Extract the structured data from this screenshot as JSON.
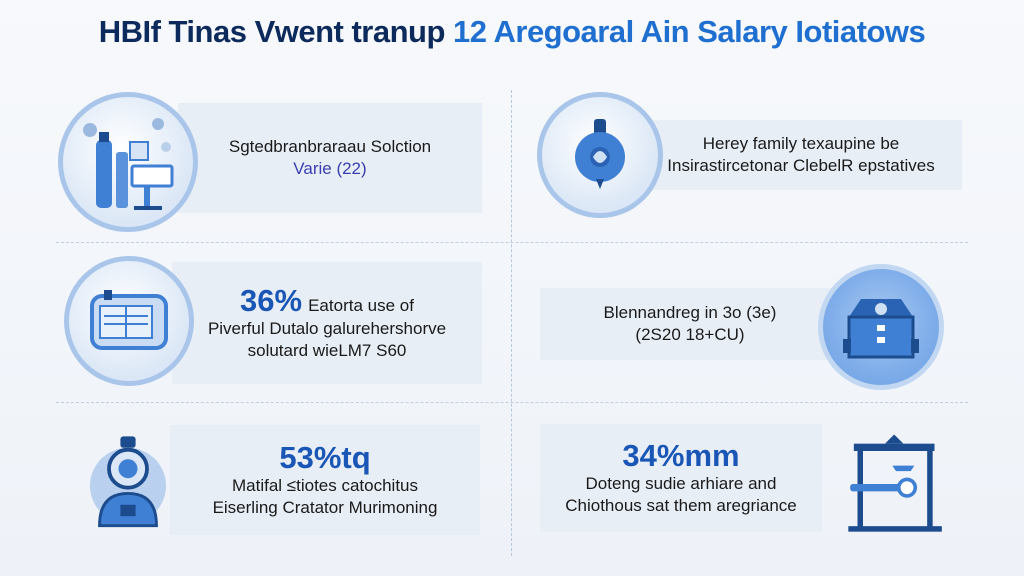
{
  "title": {
    "part1": "HBIf Tinas Vwent tranup",
    "part2": "12 Aregoaral Ain Salary Iotiatows"
  },
  "cards": [
    {
      "id": "c1",
      "stat": "",
      "lines": [
        "Sgtedbranbraraau Solction",
        "Varie (22)"
      ],
      "icon": "lab-equipment-icon"
    },
    {
      "id": "c2",
      "stat": "",
      "lines": [
        "Herey family texaupine be",
        "Insirastircetonar ClebelR epstatives"
      ],
      "icon": "medal-icon"
    },
    {
      "id": "c3",
      "stat": "36%",
      "stat_suffix": "Eatorta use of",
      "lines": [
        "Piverful Dutalo galurehershorve",
        "solutard wieLM7 S60"
      ],
      "icon": "document-folder-icon"
    },
    {
      "id": "c4",
      "stat": "",
      "lines": [
        "Blennandreg in 3o (3e)",
        "(2S20 18+CU)"
      ],
      "icon": "building-icon"
    },
    {
      "id": "c5",
      "stat": "53%tq",
      "lines": [
        "Matifal ≤tiotes catochitus",
        "Eiserling Cratator Murimoning"
      ],
      "icon": "robot-figure-icon"
    },
    {
      "id": "c6",
      "stat": "34%mm",
      "lines": [
        "Doteng sudie arhiare and",
        "Chiothous sat them aregriance"
      ],
      "icon": "tools-frame-icon"
    }
  ],
  "colors": {
    "accent": "#1f6fd1",
    "dark": "#0d2a5c",
    "card_bg": "#e8eef6",
    "icon_blue": "#3f7fd4"
  }
}
